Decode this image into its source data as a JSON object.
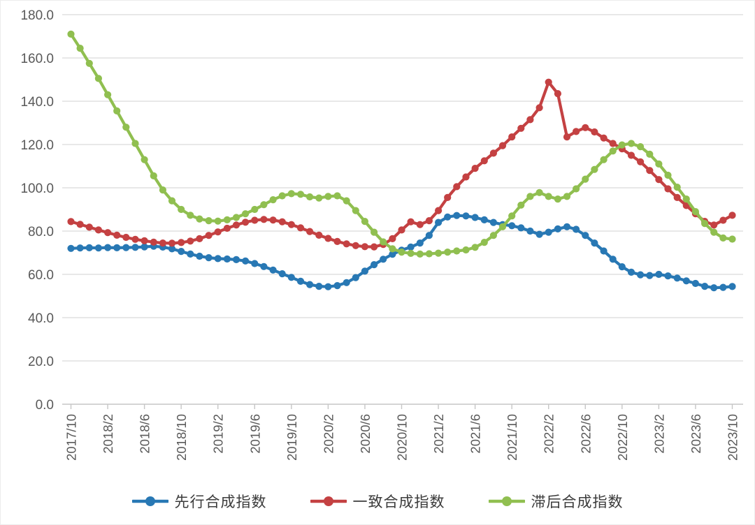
{
  "chart_data": {
    "type": "line",
    "title": "",
    "x_start": "2017/10",
    "x_end": "2023/10",
    "n_points": 73,
    "x_tick_labels": [
      "2017/10",
      "2018/2",
      "2018/6",
      "2018/10",
      "2019/2",
      "2019/6",
      "2019/10",
      "2020/2",
      "2020/6",
      "2020/10",
      "2021/2",
      "2021/6",
      "2021/10",
      "2022/2",
      "2022/6",
      "2022/10",
      "2023/2",
      "2023/6",
      "2023/10"
    ],
    "y_tick_labels": [
      "0.0",
      "20.0",
      "40.0",
      "60.0",
      "80.0",
      "100.0",
      "120.0",
      "140.0",
      "160.0",
      "180.0"
    ],
    "ylim": [
      0,
      180
    ],
    "y_step": 20,
    "grid": true,
    "legend_position": "bottom",
    "marker": "circle",
    "series": [
      {
        "name": "先行合成指数",
        "key": "leading",
        "color": "#2878b4",
        "values": [
          72.0,
          72.2,
          72.3,
          72.2,
          72.4,
          72.3,
          72.4,
          72.5,
          72.7,
          73.0,
          72.6,
          71.8,
          70.6,
          69.4,
          68.4,
          67.7,
          67.3,
          67.1,
          66.8,
          66.2,
          65.0,
          63.6,
          62.0,
          60.3,
          58.6,
          56.8,
          55.3,
          54.5,
          54.3,
          54.8,
          56.2,
          58.5,
          61.5,
          64.5,
          67.0,
          69.3,
          71.2,
          72.6,
          74.5,
          78.0,
          84.0,
          86.5,
          87.2,
          87.0,
          86.3,
          85.2,
          84.0,
          83.0,
          82.5,
          81.5,
          80.0,
          78.5,
          79.5,
          81.0,
          82.0,
          80.8,
          78.0,
          74.5,
          70.8,
          67.0,
          63.5,
          61.0,
          59.8,
          59.5,
          60.0,
          59.3,
          58.3,
          57.0,
          55.8,
          54.5,
          53.8,
          54.0,
          54.4
        ]
      },
      {
        "name": "一致合成指数",
        "key": "coincident",
        "color": "#c44142",
        "values": [
          84.4,
          83.1,
          81.8,
          80.5,
          79.3,
          78.1,
          77.1,
          76.2,
          75.5,
          74.9,
          74.5,
          74.4,
          74.7,
          75.4,
          76.5,
          78.0,
          79.6,
          81.3,
          82.8,
          84.1,
          85.0,
          85.4,
          85.1,
          84.3,
          83.0,
          81.5,
          79.8,
          78.1,
          76.6,
          75.2,
          74.1,
          73.3,
          72.8,
          72.7,
          73.8,
          76.5,
          80.5,
          84.3,
          83.0,
          84.8,
          89.5,
          95.5,
          100.5,
          105.0,
          109.0,
          112.5,
          116.0,
          119.5,
          123.5,
          127.5,
          131.5,
          137.0,
          148.8,
          143.5,
          123.5,
          126.0,
          127.8,
          125.8,
          123.0,
          120.5,
          118.0,
          115.0,
          112.0,
          108.0,
          103.8,
          99.5,
          95.5,
          91.8,
          88.0,
          84.5,
          82.8,
          85.0,
          87.3
        ]
      },
      {
        "name": "滞后合成指数",
        "key": "lagging",
        "color": "#90bf50",
        "values": [
          171.0,
          164.5,
          157.5,
          150.5,
          143.0,
          135.5,
          128.0,
          120.5,
          113.0,
          105.5,
          99.0,
          94.0,
          90.0,
          87.3,
          85.6,
          84.8,
          84.6,
          85.2,
          86.3,
          88.0,
          90.0,
          92.2,
          94.5,
          96.3,
          97.3,
          97.0,
          95.8,
          95.3,
          96.0,
          96.3,
          94.0,
          89.5,
          84.5,
          79.5,
          75.0,
          71.8,
          70.3,
          69.7,
          69.4,
          69.5,
          69.8,
          70.3,
          70.8,
          71.3,
          72.5,
          74.8,
          78.0,
          82.0,
          87.0,
          92.0,
          96.0,
          97.8,
          96.0,
          94.8,
          96.0,
          99.5,
          104.0,
          108.5,
          113.0,
          117.0,
          119.8,
          120.5,
          119.0,
          115.5,
          111.0,
          105.8,
          100.3,
          94.8,
          89.0,
          83.5,
          79.5,
          76.8,
          76.3
        ]
      }
    ]
  },
  "colors": {
    "background": "#ffffff",
    "gridline": "#d9d9d9",
    "axis_line": "#c6c6c6",
    "tick_text": "#595959",
    "legend_text": "#3b3b3b"
  }
}
